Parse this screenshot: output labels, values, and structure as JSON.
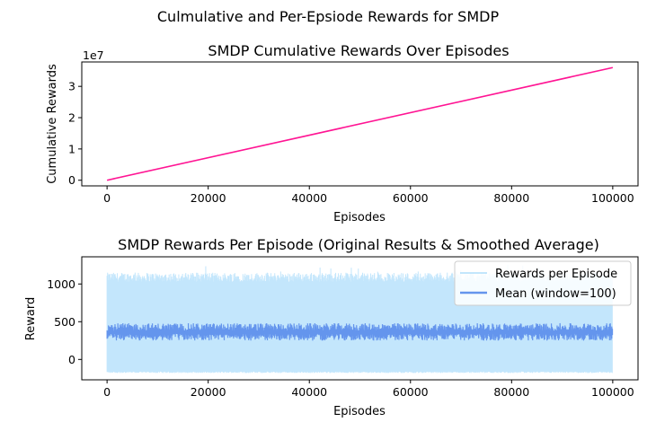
{
  "figure": {
    "suptitle": "Culmulative and Per-Epsiode Rewards for SMDP"
  },
  "chart_data": [
    {
      "type": "line",
      "title": "SMDP Cumulative Rewards Over Episodes",
      "xlabel": "Episodes",
      "ylabel": "Cumulative Rewards",
      "offset_label": "1e7",
      "xlim": [
        -5000,
        105000
      ],
      "ylim": [
        -1800000,
        37800000
      ],
      "xticks": [
        0,
        20000,
        40000,
        60000,
        80000,
        100000
      ],
      "xtick_labels": [
        "0",
        "20000",
        "40000",
        "60000",
        "80000",
        "100000"
      ],
      "yticks": [
        0,
        10000000,
        20000000,
        30000000
      ],
      "ytick_labels": [
        "0",
        "1",
        "2",
        "3"
      ],
      "grid": false,
      "series": [
        {
          "color": "#ff1493",
          "x": [
            0,
            100000
          ],
          "y": [
            0,
            36000000
          ]
        }
      ]
    },
    {
      "type": "line",
      "title": "SMDP Rewards Per Episode (Original Results & Smoothed Average)",
      "xlabel": "Episodes",
      "ylabel": "Reward",
      "xlim": [
        -5000,
        105000
      ],
      "ylim": [
        -270,
        1360
      ],
      "xticks": [
        0,
        20000,
        40000,
        60000,
        80000,
        100000
      ],
      "xtick_labels": [
        "0",
        "20000",
        "40000",
        "60000",
        "80000",
        "100000"
      ],
      "yticks": [
        0,
        500,
        1000
      ],
      "ytick_labels": [
        "0",
        "500",
        "1000"
      ],
      "grid": false,
      "legend_position": "top-right",
      "series": [
        {
          "name": "Rewards per Episode",
          "color": "#87cefa",
          "opacity": 0.5,
          "x_range": [
            0,
            100000
          ],
          "band_min": -180,
          "band_typical_max": 1150,
          "peak_max": 1280
        },
        {
          "name": "Mean (window=100)",
          "color": "#6495ed",
          "x_range": [
            0,
            100000
          ],
          "band_min": 250,
          "band_max": 480,
          "mean": 360
        }
      ]
    }
  ]
}
